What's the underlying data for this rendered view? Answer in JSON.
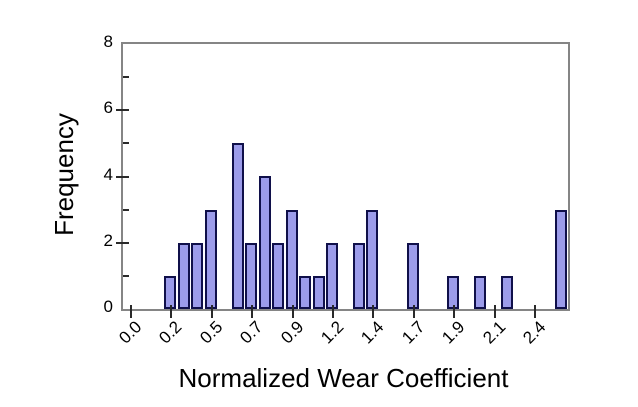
{
  "chart_data": {
    "type": "bar",
    "title": "",
    "xlabel": "Normalized Wear Coefficient",
    "ylabel": "Frequency",
    "ylim": [
      0,
      8
    ],
    "y_major_ticks": [
      0,
      2,
      4,
      6,
      8
    ],
    "y_minor_ticks": [
      1,
      3,
      5,
      7
    ],
    "grid": "off",
    "legend": "none",
    "x_slot_count": 33,
    "x_tick_labels": [
      "0.0",
      "0.2",
      "0.5",
      "0.7",
      "0.9",
      "1.2",
      "1.4",
      "1.7",
      "1.9",
      "2.1",
      "2.4"
    ],
    "x_tick_slots": [
      0,
      3,
      6,
      9,
      12,
      15,
      18,
      21,
      24,
      27,
      30
    ],
    "bars": [
      {
        "slot": 3,
        "value": 1
      },
      {
        "slot": 4,
        "value": 2
      },
      {
        "slot": 5,
        "value": 2
      },
      {
        "slot": 6,
        "value": 3
      },
      {
        "slot": 8,
        "value": 5
      },
      {
        "slot": 9,
        "value": 2
      },
      {
        "slot": 10,
        "value": 4
      },
      {
        "slot": 11,
        "value": 2
      },
      {
        "slot": 12,
        "value": 3
      },
      {
        "slot": 13,
        "value": 1
      },
      {
        "slot": 14,
        "value": 1
      },
      {
        "slot": 15,
        "value": 2
      },
      {
        "slot": 17,
        "value": 2
      },
      {
        "slot": 18,
        "value": 3
      },
      {
        "slot": 21,
        "value": 2
      },
      {
        "slot": 24,
        "value": 1
      },
      {
        "slot": 26,
        "value": 1
      },
      {
        "slot": 28,
        "value": 1
      },
      {
        "slot": 32,
        "value": 3
      }
    ],
    "colors": {
      "bar_fill": "#9c9cea",
      "bar_border": "#10104a",
      "plot_border": "#858585",
      "tick": "#2a2a2a",
      "text": "#000000",
      "background": "#ffffff"
    }
  }
}
